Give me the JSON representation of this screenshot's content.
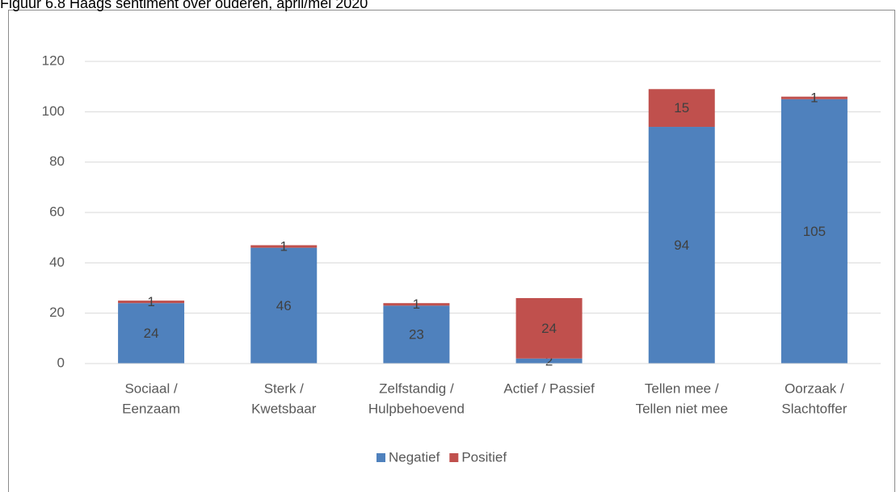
{
  "chart_data": {
    "type": "stacked_bar",
    "title": "Figuur 6.8    Haags sentiment over ouderen, april/mei 2020",
    "categories": [
      [
        "Sociaal /",
        "Eenzaam"
      ],
      [
        "Sterk /",
        "Kwetsbaar"
      ],
      [
        "Zelfstandig /",
        "Hulpbehoevend"
      ],
      [
        "Actief / Passief"
      ],
      [
        "Tellen mee /",
        "Tellen niet mee"
      ],
      [
        "Oorzaak /",
        "Slachtoffer"
      ]
    ],
    "series": [
      {
        "name": "Negatief",
        "color": "#4f81bd",
        "values": [
          24,
          46,
          23,
          2,
          94,
          105
        ]
      },
      {
        "name": "Positief",
        "color": "#c0504d",
        "values": [
          1,
          1,
          1,
          24,
          15,
          1
        ]
      }
    ],
    "ylim": [
      0,
      120
    ],
    "yticks": [
      0,
      20,
      40,
      60,
      80,
      100,
      120
    ],
    "grid": true,
    "legend": "bottom"
  }
}
